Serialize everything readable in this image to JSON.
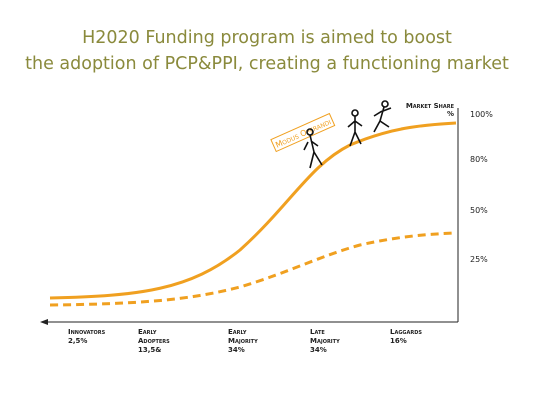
{
  "title": {
    "line1": "H2020 Funding program is aimed to boost",
    "line2": "the adoption of PCP&PPI, creating a functioning market"
  },
  "badge": "Modus Operandi",
  "axis_title": "Market Share %",
  "axis_labels": [
    "100%",
    "80%",
    "50%",
    "25%"
  ],
  "segments": [
    {
      "name": "Innovators",
      "share": "2,5%"
    },
    {
      "name": "Early Adopters",
      "share": "13,5&"
    },
    {
      "name": "Early Majority",
      "share": "34%"
    },
    {
      "name": "Late Majority",
      "share": "34%"
    },
    {
      "name": "Laggards",
      "share": "16%"
    }
  ]
}
